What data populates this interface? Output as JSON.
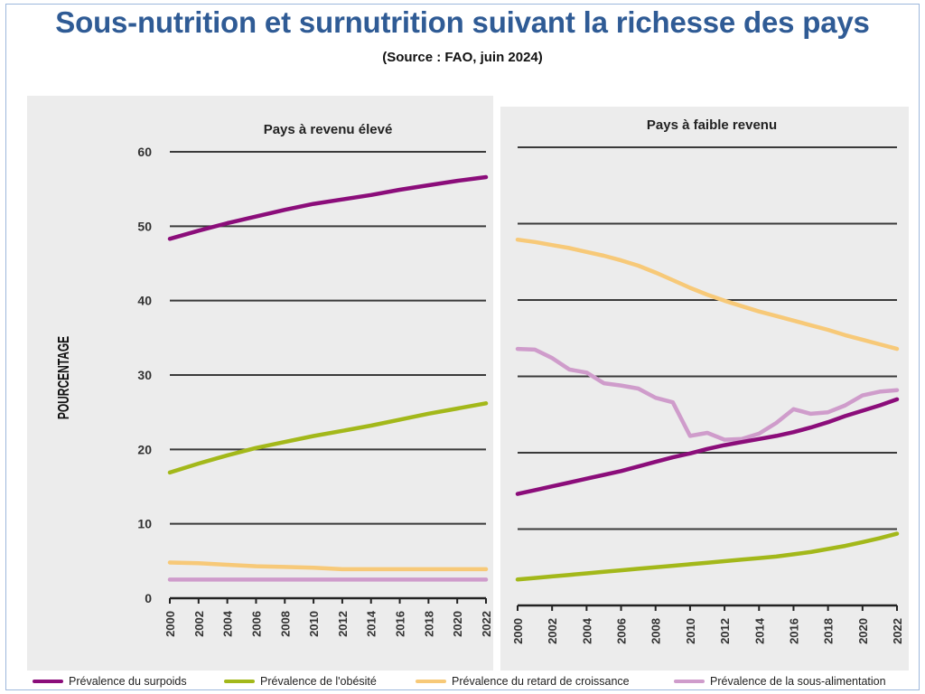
{
  "header": {
    "title": "Sous-nutrition et surnutrition suivant la richesse des pays",
    "subtitle": "(Source : FAO, juin 2024)"
  },
  "colors": {
    "title": "#2f5b95",
    "surpoids": "#8b0d7a",
    "obesite": "#a3b81a",
    "retard": "#f7c978",
    "sous_alimentation": "#cf9ccb",
    "panel_bg": "#ececec",
    "grid": "#3a3a3a"
  },
  "chart_data": [
    {
      "type": "line",
      "title": "Pays à revenu élevé",
      "xlabel": "",
      "ylabel": "POURCENTAGE",
      "ylim": [
        0,
        60
      ],
      "yticks": [
        0,
        10,
        20,
        30,
        40,
        50,
        60
      ],
      "x": [
        2000,
        2002,
        2004,
        2006,
        2008,
        2010,
        2012,
        2014,
        2016,
        2018,
        2020,
        2022
      ],
      "grid": true,
      "series": [
        {
          "name": "Prévalence du surpoids",
          "key": "surpoids",
          "values": [
            48.3,
            49.4,
            50.4,
            51.3,
            52.2,
            53.0,
            53.6,
            54.2,
            54.9,
            55.5,
            56.1,
            56.6
          ]
        },
        {
          "name": "Prévalence de l'obésité",
          "key": "obesite",
          "values": [
            16.9,
            18.1,
            19.2,
            20.2,
            21.0,
            21.8,
            22.5,
            23.2,
            24.0,
            24.8,
            25.5,
            26.2
          ]
        },
        {
          "name": "Prévalence du retard de croissance",
          "key": "retard",
          "values": [
            4.8,
            4.7,
            4.5,
            4.3,
            4.2,
            4.1,
            3.9,
            3.9,
            3.9,
            3.9,
            3.9,
            3.9
          ]
        },
        {
          "name": "Prévalence de la sous-alimentation",
          "key": "sous_alimentation",
          "values": [
            2.5,
            2.5,
            2.5,
            2.5,
            2.5,
            2.5,
            2.5,
            2.5,
            2.5,
            2.5,
            2.5,
            2.5
          ]
        }
      ]
    },
    {
      "type": "line",
      "title": "Pays à faible revenu",
      "xlabel": "",
      "ylabel": "",
      "ylim": [
        0,
        60
      ],
      "yticks": [
        0,
        10,
        20,
        30,
        40,
        50,
        60
      ],
      "x": [
        2000,
        2001,
        2002,
        2003,
        2004,
        2005,
        2006,
        2007,
        2008,
        2009,
        2010,
        2011,
        2012,
        2013,
        2014,
        2015,
        2016,
        2017,
        2018,
        2019,
        2020,
        2021,
        2022
      ],
      "xtick_labels": [
        2000,
        2002,
        2004,
        2006,
        2008,
        2010,
        2012,
        2014,
        2016,
        2018,
        2020,
        2022
      ],
      "grid": true,
      "series": [
        {
          "name": "Prévalence du surpoids",
          "key": "surpoids",
          "values": [
            14.6,
            15.1,
            15.6,
            16.1,
            16.6,
            17.1,
            17.6,
            18.2,
            18.8,
            19.4,
            19.9,
            20.5,
            21.0,
            21.4,
            21.8,
            22.2,
            22.7,
            23.3,
            24.0,
            24.8,
            25.5,
            26.2,
            27.0
          ]
        },
        {
          "name": "Prévalence de l'obésité",
          "key": "obesite",
          "values": [
            3.4,
            3.6,
            3.8,
            4.0,
            4.2,
            4.4,
            4.6,
            4.8,
            5.0,
            5.2,
            5.4,
            5.6,
            5.8,
            6.0,
            6.2,
            6.4,
            6.7,
            7.0,
            7.4,
            7.8,
            8.3,
            8.8,
            9.4
          ]
        },
        {
          "name": "Prévalence du retard de croissance",
          "key": "retard",
          "values": [
            47.9,
            47.6,
            47.2,
            46.8,
            46.3,
            45.8,
            45.2,
            44.5,
            43.6,
            42.6,
            41.6,
            40.7,
            39.9,
            39.2,
            38.5,
            37.9,
            37.3,
            36.7,
            36.1,
            35.4,
            34.8,
            34.2,
            33.6
          ]
        },
        {
          "name": "Prévalence de la sous-alimentation",
          "key": "sous_alimentation",
          "values": [
            33.6,
            33.5,
            32.4,
            30.9,
            30.5,
            29.1,
            28.8,
            28.4,
            27.2,
            26.6,
            22.2,
            22.6,
            21.7,
            21.8,
            22.5,
            23.9,
            25.7,
            25.1,
            25.3,
            26.2,
            27.5,
            28.0,
            28.2
          ]
        }
      ]
    }
  ],
  "legend": [
    {
      "label": "Prévalence du surpoids",
      "key": "surpoids"
    },
    {
      "label": "Prévalence de l'obésité",
      "key": "obesite"
    },
    {
      "label": "Prévalence du retard de croissance",
      "key": "retard"
    },
    {
      "label": "Prévalence de la sous-alimentation",
      "key": "sous_alimentation"
    }
  ]
}
